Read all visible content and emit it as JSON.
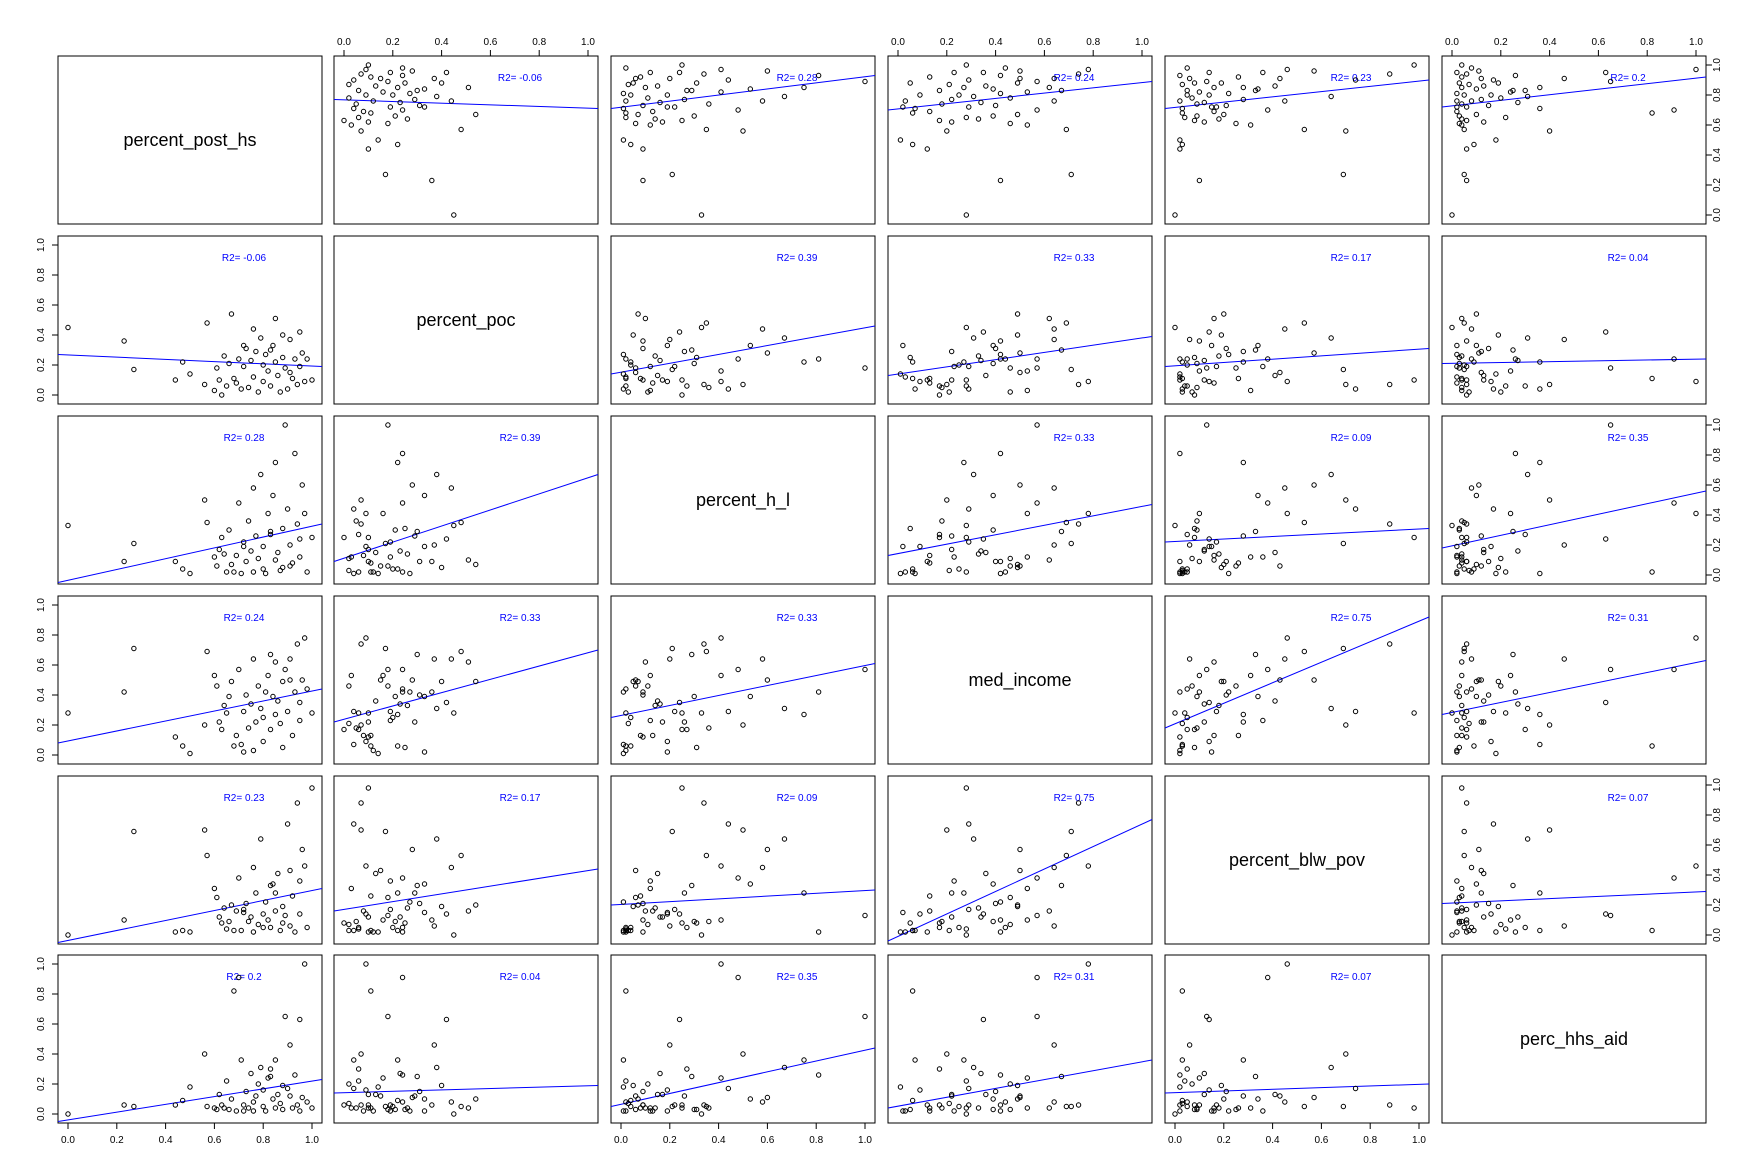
{
  "chart_data": {
    "type": "scatter",
    "variables": [
      "percent_post_hs",
      "percent_poc",
      "percent_h_l",
      "med_income",
      "percent_blw_pov",
      "perc_hhs_aid"
    ],
    "axis_range": [
      0,
      1
    ],
    "ticks": [
      "0.0",
      "0.2",
      "0.4",
      "0.6",
      "0.8",
      "1.0"
    ],
    "r2_prefix": "R2= ",
    "colors": {
      "fit_line": "#0000ff",
      "r2_text": "#0000ff",
      "points": "#000000",
      "frame": "#000000"
    },
    "pairs": [
      {
        "row": 0,
        "col": 1,
        "r2": "-0.06",
        "fit": [
          0.77,
          0.71
        ]
      },
      {
        "row": 0,
        "col": 2,
        "r2": "0.28",
        "fit": [
          0.71,
          0.93
        ]
      },
      {
        "row": 0,
        "col": 3,
        "r2": "0.24",
        "fit": [
          0.7,
          0.89
        ]
      },
      {
        "row": 0,
        "col": 4,
        "r2": "0.23",
        "fit": [
          0.71,
          0.9
        ]
      },
      {
        "row": 0,
        "col": 5,
        "r2": "0.2",
        "fit": [
          0.72,
          0.92
        ]
      },
      {
        "row": 1,
        "col": 0,
        "r2": "-0.06",
        "fit": [
          0.27,
          0.19
        ]
      },
      {
        "row": 1,
        "col": 2,
        "r2": "0.39",
        "fit": [
          0.14,
          0.46
        ]
      },
      {
        "row": 1,
        "col": 3,
        "r2": "0.33",
        "fit": [
          0.13,
          0.39
        ]
      },
      {
        "row": 1,
        "col": 4,
        "r2": "0.17",
        "fit": [
          0.19,
          0.31
        ]
      },
      {
        "row": 1,
        "col": 5,
        "r2": "0.04",
        "fit": [
          0.21,
          0.24
        ]
      },
      {
        "row": 2,
        "col": 0,
        "r2": "0.28",
        "fit": [
          -0.05,
          0.34
        ]
      },
      {
        "row": 2,
        "col": 1,
        "r2": "0.39",
        "fit": [
          0.09,
          0.67
        ]
      },
      {
        "row": 2,
        "col": 3,
        "r2": "0.33",
        "fit": [
          0.13,
          0.47
        ]
      },
      {
        "row": 2,
        "col": 4,
        "r2": "0.09",
        "fit": [
          0.22,
          0.31
        ]
      },
      {
        "row": 2,
        "col": 5,
        "r2": "0.35",
        "fit": [
          0.18,
          0.56
        ]
      },
      {
        "row": 3,
        "col": 0,
        "r2": "0.24",
        "fit": [
          0.08,
          0.44
        ]
      },
      {
        "row": 3,
        "col": 1,
        "r2": "0.33",
        "fit": [
          0.22,
          0.7
        ]
      },
      {
        "row": 3,
        "col": 2,
        "r2": "0.33",
        "fit": [
          0.25,
          0.61
        ]
      },
      {
        "row": 3,
        "col": 4,
        "r2": "0.75",
        "fit": [
          0.18,
          0.92
        ]
      },
      {
        "row": 3,
        "col": 5,
        "r2": "0.31",
        "fit": [
          0.27,
          0.63
        ]
      },
      {
        "row": 4,
        "col": 0,
        "r2": "0.23",
        "fit": [
          -0.05,
          0.31
        ]
      },
      {
        "row": 4,
        "col": 1,
        "r2": "0.17",
        "fit": [
          0.16,
          0.44
        ]
      },
      {
        "row": 4,
        "col": 2,
        "r2": "0.09",
        "fit": [
          0.2,
          0.3
        ]
      },
      {
        "row": 4,
        "col": 3,
        "r2": "0.75",
        "fit": [
          -0.04,
          0.77
        ]
      },
      {
        "row": 4,
        "col": 5,
        "r2": "0.07",
        "fit": [
          0.21,
          0.29
        ]
      },
      {
        "row": 5,
        "col": 0,
        "r2": "0.2",
        "fit": [
          -0.05,
          0.23
        ]
      },
      {
        "row": 5,
        "col": 1,
        "r2": "0.04",
        "fit": [
          0.14,
          0.19
        ]
      },
      {
        "row": 5,
        "col": 2,
        "r2": "0.35",
        "fit": [
          0.05,
          0.44
        ]
      },
      {
        "row": 5,
        "col": 3,
        "r2": "0.31",
        "fit": [
          0.04,
          0.36
        ]
      },
      {
        "row": 5,
        "col": 4,
        "r2": "0.07",
        "fit": [
          0.14,
          0.2
        ]
      }
    ],
    "observations": [
      [
        0.0,
        0.45,
        0.33,
        0.28,
        0.0,
        0.0
      ],
      [
        0.27,
        0.17,
        0.21,
        0.71,
        0.69,
        0.05
      ],
      [
        0.44,
        0.1,
        0.09,
        0.12,
        0.02,
        0.06
      ],
      [
        0.47,
        0.22,
        0.04,
        0.06,
        0.03,
        0.09
      ],
      [
        0.5,
        0.14,
        0.01,
        0.01,
        0.02,
        0.18
      ],
      [
        0.57,
        0.48,
        0.35,
        0.69,
        0.53,
        0.05
      ],
      [
        0.6,
        0.03,
        0.12,
        0.53,
        0.31,
        0.04
      ],
      [
        0.61,
        0.18,
        0.06,
        0.46,
        0.25,
        0.03
      ],
      [
        0.62,
        0.1,
        0.17,
        0.22,
        0.12,
        0.13
      ],
      [
        0.63,
        0.0,
        0.25,
        0.17,
        0.08,
        0.06
      ],
      [
        0.64,
        0.26,
        0.14,
        0.33,
        0.18,
        0.04
      ],
      [
        0.65,
        0.06,
        0.02,
        0.28,
        0.04,
        0.22
      ],
      [
        0.66,
        0.21,
        0.3,
        0.39,
        0.09,
        0.03
      ],
      [
        0.67,
        0.54,
        0.07,
        0.49,
        0.2,
        0.1
      ],
      [
        0.68,
        0.11,
        0.02,
        0.06,
        0.03,
        0.82
      ],
      [
        0.69,
        0.08,
        0.13,
        0.13,
        0.16,
        0.02
      ],
      [
        0.7,
        0.24,
        0.48,
        0.57,
        0.38,
        0.91
      ],
      [
        0.71,
        0.04,
        0.01,
        0.07,
        0.03,
        0.36
      ],
      [
        0.72,
        0.19,
        0.22,
        0.29,
        0.17,
        0.06
      ],
      [
        0.73,
        0.31,
        0.09,
        0.4,
        0.21,
        0.15
      ],
      [
        0.74,
        0.05,
        0.36,
        0.18,
        0.09,
        0.04
      ],
      [
        0.75,
        0.23,
        0.16,
        0.34,
        0.12,
        0.27
      ],
      [
        0.76,
        0.44,
        0.58,
        0.64,
        0.45,
        0.08
      ],
      [
        0.76,
        0.12,
        0.02,
        0.03,
        0.02,
        0.02
      ],
      [
        0.77,
        0.29,
        0.26,
        0.22,
        0.28,
        0.12
      ],
      [
        0.78,
        0.02,
        0.11,
        0.46,
        0.07,
        0.2
      ],
      [
        0.79,
        0.38,
        0.67,
        0.31,
        0.64,
        0.31
      ],
      [
        0.8,
        0.2,
        0.04,
        0.25,
        0.05,
        0.05
      ],
      [
        0.8,
        0.09,
        0.19,
        0.09,
        0.14,
        0.16
      ],
      [
        0.81,
        0.27,
        0.01,
        0.42,
        0.22,
        0.02
      ],
      [
        0.82,
        0.16,
        0.41,
        0.53,
        0.1,
        0.24
      ],
      [
        0.83,
        0.06,
        0.27,
        0.17,
        0.05,
        0.3
      ],
      [
        0.84,
        0.33,
        0.53,
        0.39,
        0.34,
        0.1
      ],
      [
        0.85,
        0.51,
        0.1,
        0.62,
        0.16,
        0.04
      ],
      [
        0.85,
        0.22,
        0.75,
        0.27,
        0.28,
        0.36
      ],
      [
        0.86,
        0.13,
        0.15,
        0.36,
        0.41,
        0.13
      ],
      [
        0.87,
        0.02,
        0.03,
        0.21,
        0.03,
        0.07
      ],
      [
        0.88,
        0.4,
        0.05,
        0.49,
        0.19,
        0.19
      ],
      [
        0.88,
        0.25,
        0.31,
        0.05,
        0.08,
        0.03
      ],
      [
        0.89,
        0.18,
        1.0,
        0.57,
        0.13,
        0.65
      ],
      [
        0.9,
        0.04,
        0.44,
        0.29,
        0.74,
        0.17
      ],
      [
        0.91,
        0.37,
        0.2,
        0.64,
        0.06,
        0.46
      ],
      [
        0.92,
        0.11,
        0.08,
        0.13,
        0.26,
        0.04
      ],
      [
        0.93,
        0.24,
        0.81,
        0.42,
        0.02,
        0.26
      ],
      [
        0.94,
        0.07,
        0.34,
        0.74,
        0.88,
        0.06
      ],
      [
        0.95,
        0.42,
        0.24,
        0.35,
        0.14,
        0.63
      ],
      [
        0.95,
        0.19,
        0.12,
        0.23,
        0.36,
        0.02
      ],
      [
        0.96,
        0.28,
        0.6,
        0.5,
        0.57,
        0.11
      ],
      [
        0.97,
        0.09,
        0.41,
        0.78,
        0.46,
        1.0
      ],
      [
        0.98,
        0.24,
        0.02,
        0.44,
        0.05,
        0.08
      ],
      [
        1.0,
        0.1,
        0.25,
        0.28,
        0.98,
        0.04
      ],
      [
        0.23,
        0.36,
        0.09,
        0.42,
        0.1,
        0.06
      ],
      [
        0.56,
        0.07,
        0.5,
        0.2,
        0.7,
        0.4
      ],
      [
        0.83,
        0.3,
        0.29,
        0.67,
        0.33,
        0.25
      ],
      [
        0.91,
        0.15,
        0.06,
        0.5,
        0.43,
        0.12
      ],
      [
        0.72,
        0.33,
        0.19,
        0.02,
        0.15,
        0.02
      ]
    ]
  }
}
